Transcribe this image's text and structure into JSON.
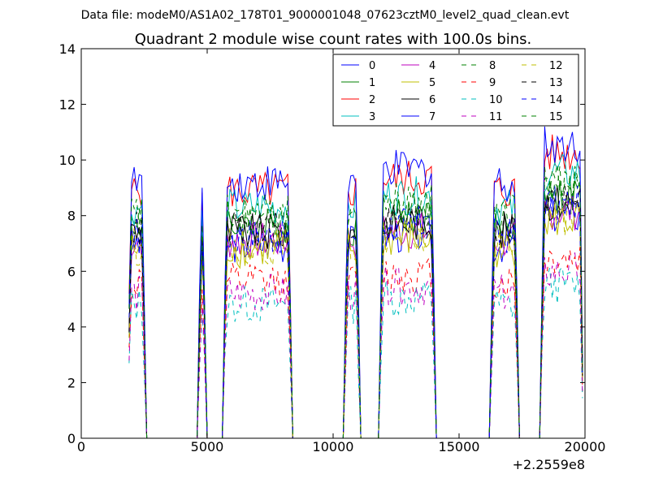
{
  "chart_data": {
    "type": "line",
    "suptitle": "Data file: modeM0/AS1A02_178T01_9000001048_07623cztM0_level2_quad_clean.evt",
    "title": "Quadrant 2 module wise count rates with 100.0s bins.",
    "xlabel": "",
    "ylabel": "",
    "xlim": [
      0,
      20000
    ],
    "ylim": [
      0,
      14
    ],
    "x_offset_label": "+2.2559e8",
    "x_ticks": [
      0,
      5000,
      10000,
      15000,
      20000
    ],
    "x_tick_labels": [
      "0",
      "5000",
      "10000",
      "15000",
      "20000"
    ],
    "y_ticks": [
      0,
      2,
      4,
      6,
      8,
      10,
      12,
      14
    ],
    "y_tick_labels": [
      "0",
      "2",
      "4",
      "6",
      "8",
      "10",
      "12",
      "14"
    ],
    "grid": false,
    "legend_location": "upper-right",
    "bin_width": 100,
    "x_start": 1900,
    "x_end": 19900,
    "on_intervals": [
      [
        1900,
        2500
      ],
      [
        4700,
        4900
      ],
      [
        5700,
        8300
      ],
      [
        10500,
        11000
      ],
      [
        11900,
        14000
      ],
      [
        16300,
        17300
      ],
      [
        18300,
        19900
      ]
    ],
    "series": [
      {
        "name": "0",
        "color": "#0000ff",
        "dash": "solid",
        "level": 7.0
      },
      {
        "name": "1",
        "color": "#008000",
        "dash": "solid",
        "level": 7.6
      },
      {
        "name": "2",
        "color": "#ff0000",
        "dash": "solid",
        "level": 8.9
      },
      {
        "name": "3",
        "color": "#00bfbf",
        "dash": "solid",
        "level": 8.3
      },
      {
        "name": "4",
        "color": "#bf00bf",
        "dash": "solid",
        "level": 7.1
      },
      {
        "name": "5",
        "color": "#bfbf00",
        "dash": "solid",
        "level": 6.8
      },
      {
        "name": "6",
        "color": "#000000",
        "dash": "solid",
        "level": 7.4
      },
      {
        "name": "7",
        "color": "#0000ff",
        "dash": "solid",
        "level": 9.2
      },
      {
        "name": "8",
        "color": "#008000",
        "dash": "dashed",
        "level": 7.9
      },
      {
        "name": "9",
        "color": "#ff0000",
        "dash": "dashed",
        "level": 5.6
      },
      {
        "name": "10",
        "color": "#00bfbf",
        "dash": "dashed",
        "level": 4.8
      },
      {
        "name": "11",
        "color": "#bf00bf",
        "dash": "dashed",
        "level": 5.2
      },
      {
        "name": "12",
        "color": "#bfbf00",
        "dash": "dashed",
        "level": 6.9
      },
      {
        "name": "13",
        "color": "#000000",
        "dash": "dashed",
        "level": 7.5
      },
      {
        "name": "14",
        "color": "#0000ff",
        "dash": "dashed",
        "level": 7.3
      },
      {
        "name": "15",
        "color": "#008000",
        "dash": "dashed",
        "level": 8.1
      }
    ]
  }
}
